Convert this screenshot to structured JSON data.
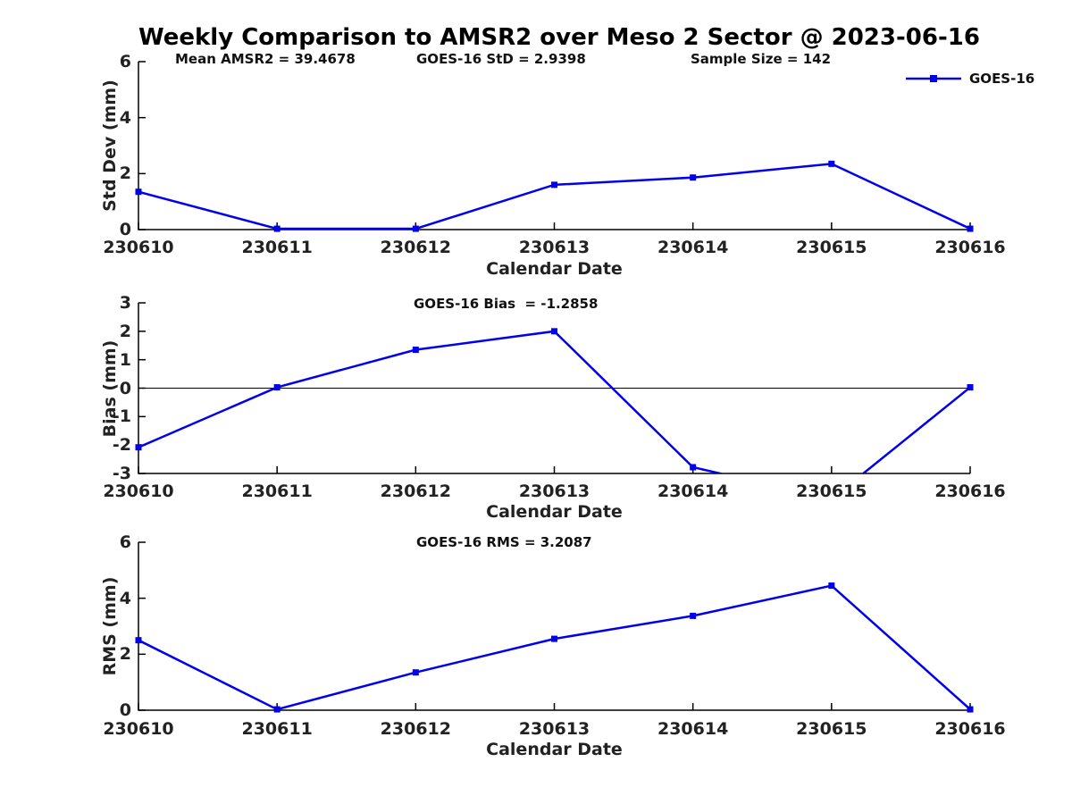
{
  "title": "Weekly Comparison to AMSR2 over Meso 2 Sector @ 2023-06-16",
  "legend": {
    "label": "GOES-16"
  },
  "colors": {
    "line": "#0000EE",
    "axis": "#000000",
    "zero_line": "#000000",
    "text": "#111111"
  },
  "stats": {
    "mean_amsr2": 39.4678,
    "goes16_std": 2.9398,
    "sample_size": 142,
    "goes16_bias": -1.2858,
    "goes16_rms": 3.2087
  },
  "chart_data": [
    {
      "type": "line",
      "name": "std-dev",
      "x": [
        "230610",
        "230611",
        "230612",
        "230613",
        "230614",
        "230615",
        "230616"
      ],
      "series": [
        {
          "name": "GOES-16",
          "values": [
            1.35,
            0.03,
            0.03,
            1.6,
            1.86,
            2.35,
            0.03
          ]
        }
      ],
      "xlabel": "Calendar Date",
      "ylabel": "Std Dev (mm)",
      "ylim": [
        0,
        6
      ],
      "yticks": [
        "0",
        "2",
        "4",
        "6"
      ],
      "ytick_values": [
        0,
        2,
        4,
        6
      ],
      "zero_line": false,
      "grid": false,
      "legend_position": "top-right",
      "annotations": [
        "Mean AMSR2 = 39.4678",
        "GOES-16 StD = 2.9398",
        "Sample Size = 142"
      ]
    },
    {
      "type": "line",
      "name": "bias",
      "x": [
        "230610",
        "230611",
        "230612",
        "230613",
        "230614",
        "230615",
        "230616"
      ],
      "series": [
        {
          "name": "GOES-16",
          "values": [
            -2.08,
            0.03,
            1.35,
            2.0,
            -2.78,
            -3.9,
            0.03
          ]
        }
      ],
      "xlabel": "Calendar Date",
      "ylabel": "Bias (mm)",
      "ylim": [
        -3,
        3
      ],
      "yticks": [
        "-3",
        "-2",
        "-1",
        "0",
        "1",
        "2",
        "3"
      ],
      "ytick_values": [
        -3,
        -2,
        -1,
        0,
        1,
        2,
        3
      ],
      "zero_line": true,
      "grid": false,
      "legend_position": "none",
      "annotations": [
        "GOES-16 Bias  = -1.2858"
      ]
    },
    {
      "type": "line",
      "name": "rms",
      "x": [
        "230610",
        "230611",
        "230612",
        "230613",
        "230614",
        "230615",
        "230616"
      ],
      "series": [
        {
          "name": "GOES-16",
          "values": [
            2.5,
            0.03,
            1.35,
            2.55,
            3.37,
            4.45,
            0.03
          ]
        }
      ],
      "xlabel": "Calendar Date",
      "ylabel": "RMS (mm)",
      "ylim": [
        0,
        6
      ],
      "yticks": [
        "0",
        "2",
        "4",
        "6"
      ],
      "ytick_values": [
        0,
        2,
        4,
        6
      ],
      "zero_line": false,
      "grid": false,
      "legend_position": "none",
      "annotations": [
        "GOES-16 RMS = 3.2087"
      ]
    }
  ]
}
